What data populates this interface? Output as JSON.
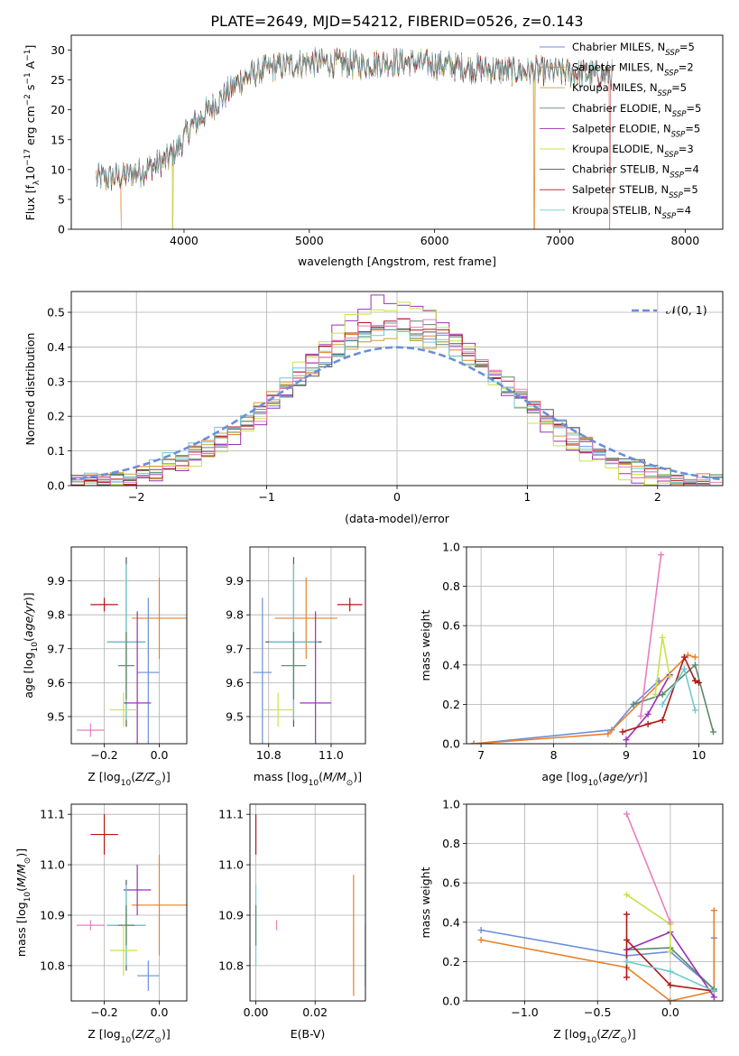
{
  "title": "PLATE=2649, MJD=54212, FIBERID=0526, z=0.143",
  "colors": {
    "Chabrier MILES": "#6a8fd8",
    "Salpeter MILES": "#e8802a",
    "Kroupa MILES": "#c8a23a",
    "Chabrier ELODIE": "#5a8a6a",
    "Salpeter ELODIE": "#9b30b8",
    "Kroupa ELODIE": "#c9e24a",
    "Chabrier STELIB": "#555555",
    "Salpeter STELIB": "#b01818",
    "Kroupa STELIB": "#6fcad0",
    "pink": "#e87fbf",
    "normal": "#6a8fd8"
  },
  "chart_data": [
    {
      "id": "spectrum",
      "type": "line",
      "xlabel": "wavelength [Angstrom, rest frame]",
      "ylabel": "Flux [f_λ 10^-17 erg cm^-2 s^-1 A^-1]",
      "xlim": [
        3100,
        8300
      ],
      "ylim": [
        0,
        32.5
      ],
      "xticks": [
        4000,
        5000,
        6000,
        7000,
        8000
      ],
      "yticks": [
        0,
        5,
        10,
        15,
        20,
        25,
        30
      ],
      "grid": false,
      "legend_position": "top-right",
      "legend": [
        {
          "label": "Chabrier MILES, N_SSP=5",
          "base": "Chabrier MILES, N",
          "sub": "SSP",
          "tail": "=5"
        },
        {
          "label": "Salpeter MILES, N_SSP=2",
          "base": "Salpeter MILES, N",
          "sub": "SSP",
          "tail": "=2"
        },
        {
          "label": "Kroupa MILES, N_SSP=5",
          "base": "Kroupa MILES, N",
          "sub": "SSP",
          "tail": "=5"
        },
        {
          "label": "Chabrier ELODIE, N_SSP=5",
          "base": "Chabrier ELODIE, N",
          "sub": "SSP",
          "tail": "=5"
        },
        {
          "label": "Salpeter ELODIE, N_SSP=5",
          "base": "Salpeter ELODIE, N",
          "sub": "SSP",
          "tail": "=5"
        },
        {
          "label": "Kroupa ELODIE, N_SSP=3",
          "base": "Kroupa ELODIE, N",
          "sub": "SSP",
          "tail": "=3"
        },
        {
          "label": "Chabrier STELIB, N_SSP=4",
          "base": "Chabrier STELIB, N",
          "sub": "SSP",
          "tail": "=4"
        },
        {
          "label": "Salpeter STELIB, N_SSP=5",
          "base": "Salpeter STELIB, N",
          "sub": "SSP",
          "tail": "=5"
        },
        {
          "label": "Kroupa STELIB, N_SSP=4",
          "base": "Kroupa STELIB, N",
          "sub": "SSP",
          "tail": "=4"
        }
      ],
      "continuum": {
        "x": [
          3300,
          3500,
          3700,
          3850,
          3950,
          4050,
          4150,
          4250,
          4350,
          4450,
          4550,
          4700,
          4850,
          5000,
          5200,
          5400,
          5600,
          5800,
          6000,
          6200,
          6400,
          6600,
          6800,
          7000,
          7200,
          7400
        ],
        "y": [
          8.5,
          8.8,
          10.0,
          11.5,
          13.5,
          17.0,
          19.0,
          21.0,
          23.0,
          25.0,
          26.0,
          27.0,
          27.5,
          28.0,
          27.8,
          27.5,
          28.0,
          28.0,
          27.6,
          27.2,
          26.8,
          26.5,
          26.5,
          26.3,
          26.0,
          25.8
        ]
      },
      "spectrum_range": [
        3300,
        7420
      ],
      "dropouts": [
        {
          "series": "Salpeter MILES",
          "x": [
            3500,
            6800
          ]
        },
        {
          "series": "Kroupa MILES",
          "x": [
            3910,
            6790
          ]
        },
        {
          "series": "Kroupa ELODIE",
          "x": [
            3905
          ]
        },
        {
          "series": "Salpeter STELIB",
          "x": [
            7400
          ]
        }
      ]
    },
    {
      "id": "residuals",
      "type": "histogram",
      "xlabel": "(data-model)/error",
      "ylabel": "Normed distribution",
      "xlim": [
        -2.5,
        2.5
      ],
      "ylim": [
        0,
        0.56
      ],
      "xticks": [
        -2,
        -1,
        0,
        1,
        2
      ],
      "yticks": [
        0,
        0.1,
        0.2,
        0.3,
        0.4,
        0.5
      ],
      "grid": true,
      "legend": "𝒩(0, 1)",
      "legend_position": "top-right",
      "bin_width": 0.1,
      "series": [
        {
          "name": "Chabrier MILES",
          "peak": 0.45
        },
        {
          "name": "Salpeter MILES",
          "peak": 0.44
        },
        {
          "name": "Kroupa MILES",
          "peak": 0.43
        },
        {
          "name": "Chabrier ELODIE",
          "peak": 0.45
        },
        {
          "name": "Salpeter ELODIE",
          "peak": 0.53
        },
        {
          "name": "Kroupa ELODIE",
          "peak": 0.51
        },
        {
          "name": "Chabrier STELIB",
          "peak": 0.44
        },
        {
          "name": "Salpeter STELIB",
          "peak": 0.47
        },
        {
          "name": "Kroupa STELIB",
          "peak": 0.43
        },
        {
          "name": "pink",
          "peak": 0.47
        }
      ]
    },
    {
      "id": "z-age",
      "type": "errorbar",
      "xlabel": "Z [log10(Z/Z_sun)]",
      "ylabel": "age [log10(age/yr)]",
      "xlim": [
        -0.32,
        0.1
      ],
      "ylim": [
        9.42,
        10.0
      ],
      "xticks": [
        -0.2,
        0.0
      ],
      "yticks": [
        9.5,
        9.6,
        9.7,
        9.8,
        9.9
      ],
      "grid": true,
      "points": [
        {
          "series": "Salpeter STELIB",
          "x": -0.2,
          "xerr": 0.05,
          "y": 9.83,
          "yerr": 0.02
        },
        {
          "series": "Salpeter MILES",
          "x": 0.0,
          "xerr": 0.1,
          "y": 9.79,
          "yerr": 0.12
        },
        {
          "series": "Chabrier STELIB",
          "x": -0.12,
          "xerr": 0.07,
          "y": 9.72,
          "yerr": 0.25
        },
        {
          "series": "Kroupa STELIB",
          "x": -0.12,
          "xerr": 0.07,
          "y": 9.72,
          "yerr": 0.23
        },
        {
          "series": "Chabrier ELODIE",
          "x": -0.12,
          "xerr": 0.03,
          "y": 9.65,
          "yerr": 0.1
        },
        {
          "series": "Chabrier MILES",
          "x": -0.04,
          "xerr": 0.04,
          "y": 9.63,
          "yerr": 0.22
        },
        {
          "series": "Salpeter ELODIE",
          "x": -0.08,
          "xerr": 0.05,
          "y": 9.54,
          "yerr": 0.27
        },
        {
          "series": "Kroupa ELODIE",
          "x": -0.13,
          "xerr": 0.05,
          "y": 9.52,
          "yerr": 0.05
        },
        {
          "series": "pink",
          "x": -0.25,
          "xerr": 0.05,
          "y": 9.46,
          "yerr": 0.02
        }
      ]
    },
    {
      "id": "mass-age",
      "type": "errorbar",
      "xlabel": "mass [log10(M/M_sun)]",
      "xlim": [
        10.74,
        11.11
      ],
      "ylim": [
        9.42,
        10.0
      ],
      "xticks": [
        10.8,
        11.0
      ],
      "yticks": [
        9.5,
        9.6,
        9.7,
        9.8,
        9.9
      ],
      "grid": true,
      "points": [
        {
          "series": "Salpeter STELIB",
          "x": 11.06,
          "xerr": 0.04,
          "y": 9.83,
          "yerr": 0.02
        },
        {
          "series": "Salpeter MILES",
          "x": 10.92,
          "xerr": 0.1,
          "y": 9.79,
          "yerr": 0.12
        },
        {
          "series": "Chabrier STELIB",
          "x": 10.88,
          "xerr": 0.09,
          "y": 9.72,
          "yerr": 0.25
        },
        {
          "series": "Kroupa STELIB",
          "x": 10.88,
          "xerr": 0.08,
          "y": 9.72,
          "yerr": 0.23
        },
        {
          "series": "Chabrier ELODIE",
          "x": 10.88,
          "xerr": 0.04,
          "y": 9.65,
          "yerr": 0.1
        },
        {
          "series": "Chabrier MILES",
          "x": 10.78,
          "xerr": 0.03,
          "y": 9.63,
          "yerr": 0.22
        },
        {
          "series": "Salpeter ELODIE",
          "x": 10.95,
          "xerr": 0.05,
          "y": 9.54,
          "yerr": 0.27
        },
        {
          "series": "Kroupa ELODIE",
          "x": 10.83,
          "xerr": 0.05,
          "y": 9.52,
          "yerr": 0.05
        }
      ]
    },
    {
      "id": "age-weight",
      "type": "line",
      "xlabel": "age [log10(age/yr)]",
      "ylabel": "mass weight",
      "xlim": [
        6.8,
        10.33
      ],
      "ylim": [
        0,
        1.0
      ],
      "xticks": [
        7,
        8,
        9,
        10
      ],
      "yticks": [
        0.0,
        0.2,
        0.4,
        0.6,
        0.8,
        1.0
      ],
      "grid": true,
      "series": [
        {
          "name": "Chabrier MILES",
          "x": [
            6.9,
            8.8,
            9.1,
            9.45
          ],
          "y": [
            0.0,
            0.07,
            0.2,
            0.32
          ]
        },
        {
          "name": "Salpeter MILES",
          "x": [
            6.9,
            8.75,
            9.85,
            9.95
          ],
          "y": [
            0.0,
            0.05,
            0.45,
            0.44
          ]
        },
        {
          "name": "Chabrier ELODIE",
          "x": [
            9.1,
            9.5,
            9.95,
            10.2
          ],
          "y": [
            0.2,
            0.25,
            0.4,
            0.06
          ]
        },
        {
          "name": "Salpeter ELODIE",
          "x": [
            9.0,
            9.3,
            9.6
          ],
          "y": [
            0.02,
            0.15,
            0.35
          ]
        },
        {
          "name": "Kroupa ELODIE",
          "x": [
            9.4,
            9.5,
            9.6
          ],
          "y": [
            0.25,
            0.54,
            0.34
          ]
        },
        {
          "name": "Salpeter STELIB",
          "x": [
            8.95,
            9.3,
            9.5,
            9.8,
            9.95,
            10.0
          ],
          "y": [
            0.06,
            0.1,
            0.12,
            0.44,
            0.32,
            0.31
          ]
        },
        {
          "name": "Kroupa STELIB",
          "x": [
            9.5,
            9.8,
            9.95
          ],
          "y": [
            0.2,
            0.38,
            0.17
          ]
        },
        {
          "name": "pink",
          "x": [
            9.2,
            9.48
          ],
          "y": [
            0.14,
            0.96
          ]
        }
      ]
    },
    {
      "id": "z-mass",
      "type": "errorbar",
      "xlabel": "Z [log10(Z/Z_sun)]",
      "ylabel": "mass [log10(M/M_sun)]",
      "xlim": [
        -0.32,
        0.1
      ],
      "ylim": [
        10.73,
        11.12
      ],
      "xticks": [
        -0.2,
        0.0
      ],
      "yticks": [
        10.8,
        10.9,
        11.0,
        11.1
      ],
      "grid": true,
      "points": [
        {
          "series": "Salpeter STELIB",
          "x": -0.2,
          "xerr": 0.05,
          "y": 11.06,
          "yerr": 0.04
        },
        {
          "series": "Salpeter MILES",
          "x": 0.0,
          "xerr": 0.1,
          "y": 10.92,
          "yerr": 0.1
        },
        {
          "series": "Salpeter ELODIE",
          "x": -0.08,
          "xerr": 0.05,
          "y": 10.95,
          "yerr": 0.05
        },
        {
          "series": "Chabrier STELIB",
          "x": -0.12,
          "xerr": 0.07,
          "y": 10.88,
          "yerr": 0.09
        },
        {
          "series": "Kroupa STELIB",
          "x": -0.12,
          "xerr": 0.07,
          "y": 10.88,
          "yerr": 0.08
        },
        {
          "series": "Chabrier ELODIE",
          "x": -0.12,
          "xerr": 0.03,
          "y": 10.88,
          "yerr": 0.04
        },
        {
          "series": "Chabrier MILES",
          "x": -0.04,
          "xerr": 0.04,
          "y": 10.78,
          "yerr": 0.03
        },
        {
          "series": "Kroupa ELODIE",
          "x": -0.13,
          "xerr": 0.05,
          "y": 10.83,
          "yerr": 0.05
        },
        {
          "series": "pink",
          "x": -0.25,
          "xerr": 0.05,
          "y": 10.88,
          "yerr": 0.01
        }
      ]
    },
    {
      "id": "ebv-mass",
      "type": "errorbar",
      "xlabel": "E(B-V)",
      "xlim": [
        -0.002,
        0.037
      ],
      "ylim": [
        10.73,
        11.12
      ],
      "xticks": [
        0.0,
        0.02
      ],
      "yticks": [
        10.8,
        10.9,
        11.0,
        11.1
      ],
      "grid": true,
      "points": [
        {
          "series": "Salpeter STELIB",
          "x": 0.0,
          "xerr": 0,
          "y": 11.06,
          "yerr": 0.04
        },
        {
          "series": "Kroupa STELIB",
          "x": 0.0,
          "xerr": 0,
          "y": 10.88,
          "yerr": 0.08
        },
        {
          "series": "Chabrier ELODIE",
          "x": 0.0,
          "xerr": 0,
          "y": 10.88,
          "yerr": 0.04
        },
        {
          "series": "pink",
          "x": 0.007,
          "xerr": 0,
          "y": 10.88,
          "yerr": 0.01
        },
        {
          "series": "Salpeter MILES",
          "x": 0.033,
          "xerr": 0,
          "y": 10.86,
          "yerr": 0.12
        },
        {
          "series": "Chabrier MILES",
          "x": 0.037,
          "xerr": 0,
          "y": 10.82,
          "yerr": 0.06
        }
      ]
    },
    {
      "id": "z-weight",
      "type": "line",
      "xlabel": "Z [log10(Z/Z_sun)]",
      "ylabel": "mass weight",
      "xlim": [
        -1.4,
        0.36
      ],
      "ylim": [
        0,
        1.0
      ],
      "xticks": [
        -1.0,
        -0.5,
        0.0
      ],
      "yticks": [
        0.0,
        0.2,
        0.4,
        0.6,
        0.8,
        1.0
      ],
      "grid": true,
      "series": [
        {
          "name": "Chabrier MILES",
          "x": [
            -1.3,
            -0.3,
            0.0,
            0.3,
            0.3
          ],
          "y": [
            0.36,
            0.23,
            0.25,
            0.06,
            0.32
          ]
        },
        {
          "name": "Salpeter MILES",
          "x": [
            -1.3,
            -0.3,
            0.0,
            0.3,
            0.3
          ],
          "y": [
            0.31,
            0.17,
            0.0,
            0.05,
            0.46
          ]
        },
        {
          "name": "Chabrier ELODIE",
          "x": [
            -0.3,
            0.0,
            0.3
          ],
          "y": [
            0.26,
            0.27,
            0.06
          ]
        },
        {
          "name": "Salpeter ELODIE",
          "x": [
            -0.3,
            0.0,
            0.3
          ],
          "y": [
            0.26,
            0.35,
            0.02
          ]
        },
        {
          "name": "Kroupa ELODIE",
          "x": [
            -0.3,
            0.0,
            0.0
          ],
          "y": [
            0.54,
            0.39,
            0.25
          ]
        },
        {
          "name": "Salpeter STELIB",
          "x": [
            -0.3,
            -0.3,
            -0.3,
            0.0,
            0.3
          ],
          "y": [
            0.12,
            0.44,
            0.31,
            0.08,
            0.05
          ]
        },
        {
          "name": "Kroupa STELIB",
          "x": [
            -0.3,
            0.0,
            0.3
          ],
          "y": [
            0.2,
            0.15,
            0.05
          ]
        },
        {
          "name": "pink",
          "x": [
            -0.3,
            0.0
          ],
          "y": [
            0.95,
            0.4
          ]
        }
      ]
    }
  ]
}
